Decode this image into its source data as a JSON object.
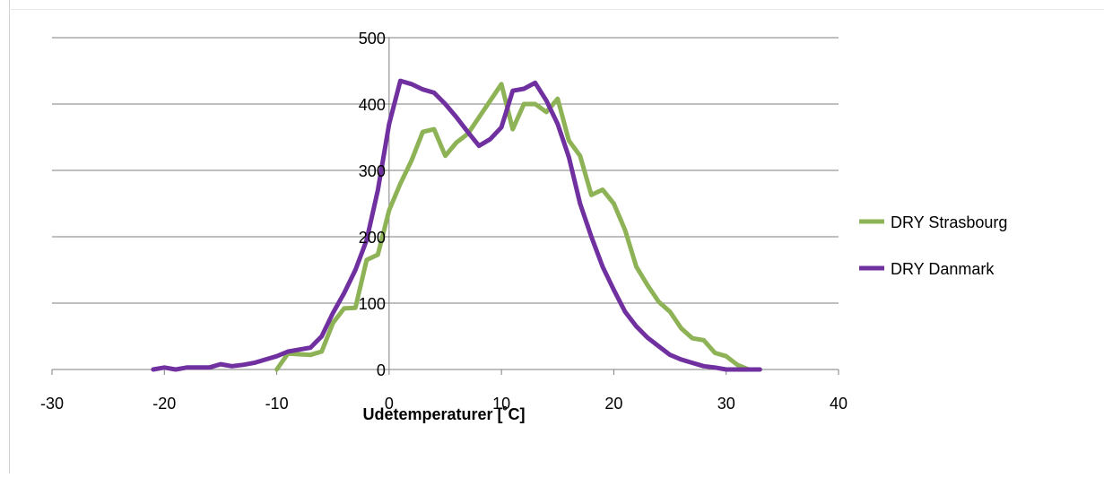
{
  "chart_data": {
    "type": "line",
    "title": "",
    "xlabel": "Udetemperaturer [˚C]",
    "ylabel": "",
    "xlim": [
      -30,
      40
    ],
    "ylim": [
      0,
      500
    ],
    "xticks": [
      "-30",
      "-20",
      "-10",
      "0",
      "10",
      "20",
      "30",
      "40"
    ],
    "yticks": [
      "0",
      "100",
      "200",
      "300",
      "400",
      "500"
    ],
    "x_tick_values": [
      -30,
      -20,
      -10,
      0,
      10,
      20,
      30,
      40
    ],
    "y_tick_values": [
      0,
      100,
      200,
      300,
      400,
      500
    ],
    "grid": "horizontal",
    "legend_position": "right",
    "series": [
      {
        "name": "DRY Strasbourg",
        "color": "#8db356",
        "points": [
          [
            -10,
            0
          ],
          [
            -9,
            24
          ],
          [
            -8,
            23
          ],
          [
            -7,
            22
          ],
          [
            -6,
            27
          ],
          [
            -5,
            70
          ],
          [
            -4,
            92
          ],
          [
            -3,
            93
          ],
          [
            -2,
            165
          ],
          [
            -1,
            173
          ],
          [
            0,
            240
          ],
          [
            1,
            280
          ],
          [
            2,
            315
          ],
          [
            3,
            358
          ],
          [
            4,
            362
          ],
          [
            5,
            322
          ],
          [
            6,
            342
          ],
          [
            7,
            355
          ],
          [
            8,
            380
          ],
          [
            9,
            405
          ],
          [
            10,
            430
          ],
          [
            11,
            362
          ],
          [
            12,
            400
          ],
          [
            13,
            400
          ],
          [
            14,
            388
          ],
          [
            15,
            408
          ],
          [
            16,
            345
          ],
          [
            17,
            322
          ],
          [
            18,
            263
          ],
          [
            19,
            271
          ],
          [
            20,
            250
          ],
          [
            21,
            210
          ],
          [
            22,
            155
          ],
          [
            23,
            127
          ],
          [
            24,
            102
          ],
          [
            25,
            87
          ],
          [
            26,
            62
          ],
          [
            27,
            47
          ],
          [
            28,
            44
          ],
          [
            29,
            25
          ],
          [
            30,
            20
          ],
          [
            31,
            7
          ],
          [
            32,
            0
          ],
          [
            33,
            0
          ]
        ]
      },
      {
        "name": "DRY Danmark",
        "color": "#7030a0",
        "points": [
          [
            -21,
            0
          ],
          [
            -20,
            3
          ],
          [
            -19,
            0
          ],
          [
            -18,
            3
          ],
          [
            -17,
            3
          ],
          [
            -16,
            3
          ],
          [
            -15,
            8
          ],
          [
            -14,
            5
          ],
          [
            -13,
            7
          ],
          [
            -12,
            10
          ],
          [
            -11,
            15
          ],
          [
            -10,
            20
          ],
          [
            -9,
            27
          ],
          [
            -8,
            30
          ],
          [
            -7,
            33
          ],
          [
            -6,
            50
          ],
          [
            -5,
            85
          ],
          [
            -4,
            115
          ],
          [
            -3,
            150
          ],
          [
            -2,
            195
          ],
          [
            -1,
            270
          ],
          [
            -0.5,
            320
          ],
          [
            0,
            370
          ],
          [
            1,
            435
          ],
          [
            2,
            430
          ],
          [
            3,
            422
          ],
          [
            4,
            417
          ],
          [
            5,
            400
          ],
          [
            6,
            380
          ],
          [
            7,
            358
          ],
          [
            8,
            337
          ],
          [
            9,
            347
          ],
          [
            10,
            365
          ],
          [
            11,
            420
          ],
          [
            12,
            423
          ],
          [
            13,
            432
          ],
          [
            14,
            405
          ],
          [
            15,
            370
          ],
          [
            16,
            320
          ],
          [
            17,
            250
          ],
          [
            18,
            200
          ],
          [
            19,
            155
          ],
          [
            20,
            120
          ],
          [
            21,
            87
          ],
          [
            22,
            65
          ],
          [
            23,
            48
          ],
          [
            24,
            35
          ],
          [
            25,
            22
          ],
          [
            26,
            15
          ],
          [
            27,
            10
          ],
          [
            28,
            5
          ],
          [
            29,
            3
          ],
          [
            30,
            0
          ],
          [
            31,
            0
          ],
          [
            32,
            0
          ],
          [
            33,
            0
          ]
        ]
      }
    ]
  }
}
